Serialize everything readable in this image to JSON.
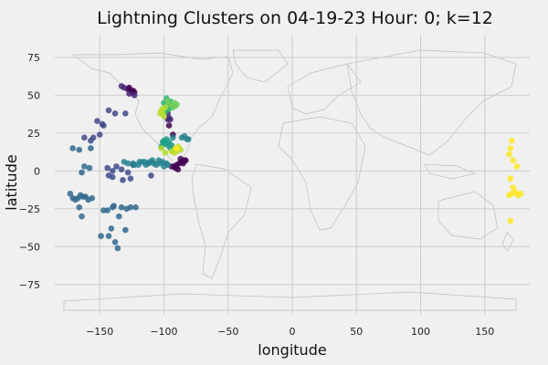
{
  "chart_data": {
    "type": "scatter",
    "title": "Lightning Clusters on 04-19-23 Hour: 0; k=12",
    "xlabel": "longitude",
    "ylabel": "latitude",
    "xlim": [
      -185,
      185
    ],
    "ylim": [
      -95,
      90
    ],
    "xticks": [
      -150,
      -100,
      -50,
      0,
      50,
      100,
      150
    ],
    "yticks": [
      75,
      50,
      25,
      0,
      -25,
      -50,
      -75
    ],
    "grid": true,
    "legend": "none",
    "basemap": "world country outlines",
    "series": [
      {
        "color": "#440154",
        "points": [
          [
            -128,
            54
          ],
          [
            -126,
            53
          ],
          [
            -124,
            53
          ],
          [
            -125,
            52
          ],
          [
            -127,
            55
          ],
          [
            -123,
            52
          ],
          [
            -96,
            30
          ],
          [
            -93,
            24
          ],
          [
            -90,
            4
          ],
          [
            -88,
            5
          ],
          [
            -86,
            6
          ],
          [
            -84,
            7
          ],
          [
            -92,
            3
          ],
          [
            -94,
            3
          ],
          [
            -89,
            1
          ],
          [
            -85,
            5
          ],
          [
            -87,
            8
          ],
          [
            -91,
            2
          ],
          [
            -83,
            7
          ]
        ]
      },
      {
        "color": "#482878",
        "points": [
          [
            -133,
            56
          ],
          [
            -131,
            55
          ],
          [
            -127,
            51
          ],
          [
            -123,
            50
          ],
          [
            -96,
            35
          ],
          [
            -97,
            34
          ],
          [
            -95,
            34
          ],
          [
            -97,
            38
          ]
        ]
      },
      {
        "color": "#3e4a89",
        "points": [
          [
            -143,
            40
          ],
          [
            -138,
            38
          ],
          [
            -130,
            38
          ],
          [
            -152,
            33
          ],
          [
            -148,
            31
          ],
          [
            -147,
            30
          ],
          [
            -162,
            22
          ],
          [
            -155,
            22
          ],
          [
            -157,
            20
          ],
          [
            -150,
            24
          ],
          [
            -144,
            2
          ],
          [
            -140,
            0
          ],
          [
            -137,
            3
          ],
          [
            -133,
            1
          ],
          [
            -140,
            -4
          ],
          [
            -143,
            -3
          ],
          [
            -132,
            -6
          ],
          [
            -126,
            -5
          ],
          [
            -124,
            4
          ],
          [
            -128,
            -1
          ],
          [
            -110,
            -3
          ]
        ]
      },
      {
        "color": "#31688e",
        "points": [
          [
            -171,
            15
          ],
          [
            -166,
            14
          ],
          [
            -157,
            15
          ],
          [
            -162,
            3
          ],
          [
            -158,
            2
          ],
          [
            -164,
            -1
          ],
          [
            -163,
            -17
          ],
          [
            -165,
            -16
          ],
          [
            -167,
            -18
          ],
          [
            -169,
            -19
          ],
          [
            -161,
            -17
          ],
          [
            -159,
            -19
          ],
          [
            -156,
            -18
          ],
          [
            -171,
            -18
          ],
          [
            -173,
            -15
          ],
          [
            -166,
            -24
          ],
          [
            -164,
            -30
          ],
          [
            -147,
            -26
          ],
          [
            -144,
            -26
          ],
          [
            -133,
            -24
          ],
          [
            -139,
            -23
          ],
          [
            -135,
            -30
          ],
          [
            -140,
            -24
          ],
          [
            -129,
            -25
          ],
          [
            -126,
            -24
          ],
          [
            -122,
            -24
          ],
          [
            -130,
            -39
          ],
          [
            -141,
            -38
          ],
          [
            -143,
            -43
          ],
          [
            -138,
            -47
          ],
          [
            -136,
            -51
          ],
          [
            -149,
            -43
          ]
        ]
      },
      {
        "color": "#26828e",
        "points": [
          [
            -131,
            6
          ],
          [
            -128,
            5
          ],
          [
            -124,
            5
          ],
          [
            -120,
            4
          ],
          [
            -117,
            6
          ],
          [
            -114,
            4
          ],
          [
            -111,
            6
          ],
          [
            -108,
            5
          ],
          [
            -106,
            4
          ],
          [
            -103,
            5
          ],
          [
            -100,
            3
          ],
          [
            -98,
            5
          ],
          [
            -97,
            4
          ],
          [
            -101,
            6
          ],
          [
            -104,
            7
          ],
          [
            -109,
            7
          ],
          [
            -112,
            5
          ],
          [
            -115,
            6
          ],
          [
            -119,
            6
          ],
          [
            -123,
            4
          ],
          [
            -93,
            22
          ],
          [
            -86,
            22
          ],
          [
            -84,
            23
          ],
          [
            -82,
            21
          ],
          [
            -81,
            21
          ]
        ]
      },
      {
        "color": "#1f9e89",
        "points": [
          [
            -100,
            20
          ],
          [
            -98,
            21
          ],
          [
            -96,
            19
          ],
          [
            -94,
            17
          ],
          [
            -99,
            18
          ],
          [
            -102,
            16
          ],
          [
            -97,
            17
          ],
          [
            -95,
            15
          ],
          [
            -101,
            19
          ]
        ]
      },
      {
        "color": "#35b779",
        "points": [
          [
            -98,
            40
          ],
          [
            -97,
            42
          ],
          [
            -99,
            44
          ],
          [
            -96,
            45
          ],
          [
            -95,
            46
          ],
          [
            -98,
            48
          ],
          [
            -100,
            45
          ],
          [
            -96,
            41
          ],
          [
            -100,
            38
          ],
          [
            -94,
            42
          ]
        ]
      },
      {
        "color": "#6ece58",
        "points": [
          [
            -97,
            46
          ],
          [
            -93,
            42
          ],
          [
            -91,
            43
          ],
          [
            -92,
            45
          ],
          [
            -90,
            44
          ],
          [
            -96,
            44
          ]
        ]
      },
      {
        "color": "#b5de2b",
        "points": [
          [
            -102,
            40
          ],
          [
            -103,
            38
          ],
          [
            -101,
            41
          ],
          [
            -99,
            42
          ],
          [
            -101,
            38
          ],
          [
            -100,
            36
          ],
          [
            -102,
            15
          ],
          [
            -99,
            12
          ],
          [
            -91,
            15
          ],
          [
            -89,
            16
          ],
          [
            -87,
            14
          ],
          [
            -90,
            13
          ]
        ]
      },
      {
        "color": "#fde725",
        "points": [
          [
            171,
            20
          ],
          [
            170,
            15
          ],
          [
            169,
            11
          ],
          [
            172,
            7
          ],
          [
            175,
            3
          ],
          [
            170,
            -5
          ],
          [
            172,
            -11
          ],
          [
            174,
            -14
          ],
          [
            171,
            -15
          ],
          [
            169,
            -16
          ],
          [
            176,
            -16
          ],
          [
            178,
            -15
          ],
          [
            170,
            -33
          ],
          [
            -91,
            14
          ],
          [
            -90,
            15
          ]
        ]
      },
      {
        "color": "#bddf26",
        "points": [
          [
            -92,
            12
          ],
          [
            -94,
            13
          ]
        ]
      }
    ]
  }
}
